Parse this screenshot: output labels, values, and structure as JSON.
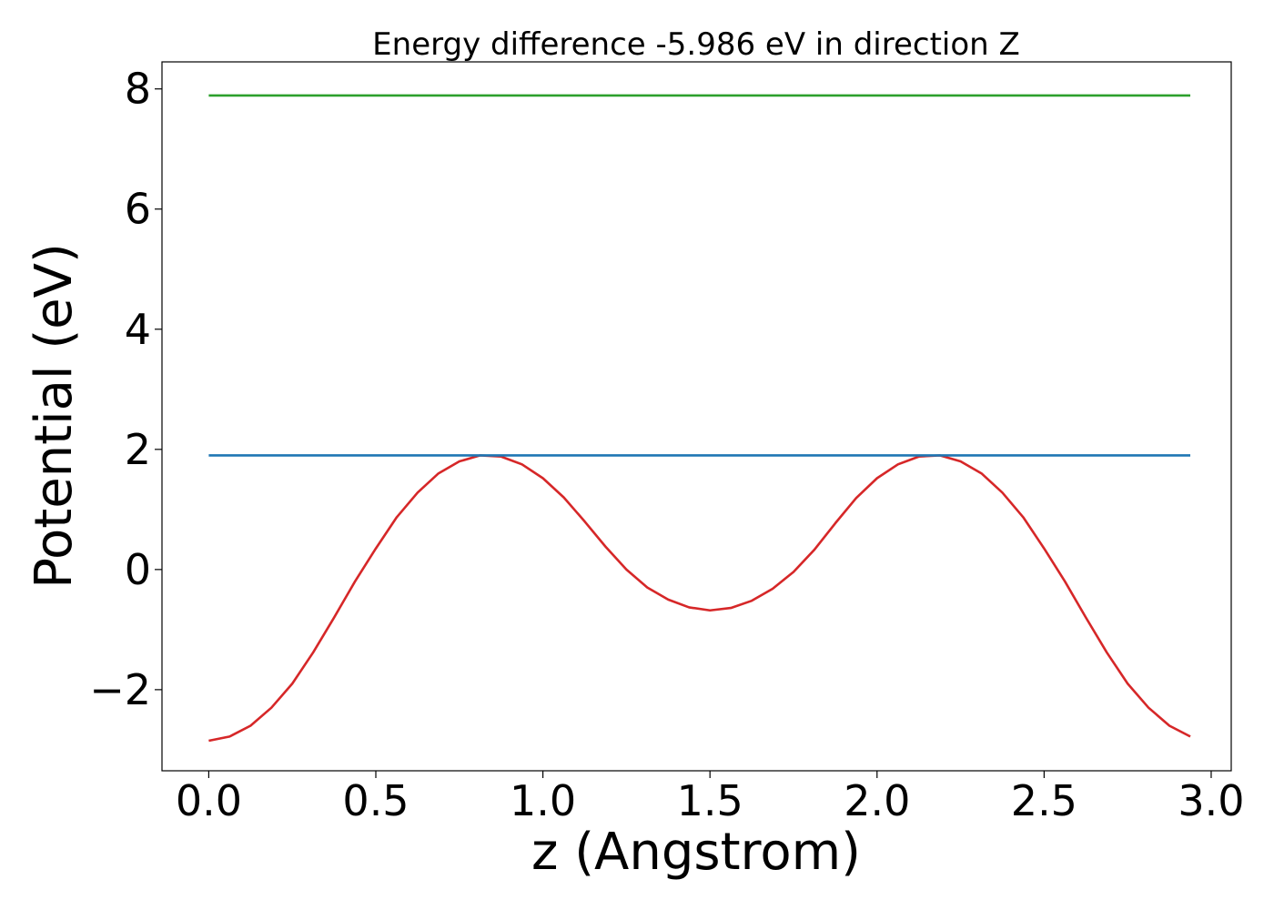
{
  "chart_data": {
    "type": "line",
    "title": "Energy difference -5.986 eV in direction Z",
    "xlabel": "z (Angstrom)",
    "ylabel": "Potential (eV)",
    "xlim": [
      -0.14,
      3.06
    ],
    "ylim": [
      -3.35,
      8.45
    ],
    "xticks": [
      0.0,
      0.5,
      1.0,
      1.5,
      2.0,
      2.5,
      3.0
    ],
    "xtick_labels": [
      "0.0",
      "0.5",
      "1.0",
      "1.5",
      "2.0",
      "2.5",
      "3.0"
    ],
    "yticks": [
      -2,
      0,
      2,
      4,
      6,
      8
    ],
    "ytick_labels": [
      "−2",
      "0",
      "2",
      "4",
      "6",
      "8"
    ],
    "grid": false,
    "series": [
      {
        "color": "#d62728",
        "x": [
          0.0,
          0.0625,
          0.125,
          0.1875,
          0.25,
          0.3125,
          0.375,
          0.4375,
          0.5,
          0.5625,
          0.625,
          0.6875,
          0.75,
          0.8125,
          0.875,
          0.9375,
          1.0,
          1.0625,
          1.125,
          1.1875,
          1.25,
          1.3125,
          1.375,
          1.4375,
          1.5,
          1.5625,
          1.625,
          1.6875,
          1.75,
          1.8125,
          1.875,
          1.9375,
          2.0,
          2.0625,
          2.125,
          2.1875,
          2.25,
          2.3125,
          2.375,
          2.4375,
          2.5,
          2.5625,
          2.625,
          2.6875,
          2.75,
          2.8125,
          2.875,
          2.9375
        ],
        "y": [
          -2.85,
          -2.78,
          -2.6,
          -2.3,
          -1.9,
          -1.38,
          -0.8,
          -0.2,
          0.35,
          0.87,
          1.28,
          1.6,
          1.8,
          1.9,
          1.88,
          1.75,
          1.52,
          1.2,
          0.8,
          0.38,
          0.0,
          -0.3,
          -0.5,
          -0.63,
          -0.68,
          -0.64,
          -0.52,
          -0.32,
          -0.04,
          0.33,
          0.77,
          1.19,
          1.52,
          1.75,
          1.88,
          1.9,
          1.8,
          1.6,
          1.28,
          0.87,
          0.35,
          -0.2,
          -0.8,
          -1.38,
          -1.9,
          -2.3,
          -2.6,
          -2.78
        ]
      },
      {
        "color": "#1f77b4",
        "x": [
          0.0,
          2.9375
        ],
        "y": [
          1.9,
          1.9
        ]
      },
      {
        "color": "#2ca02c",
        "x": [
          0.0,
          2.9375
        ],
        "y": [
          7.89,
          7.89
        ]
      }
    ]
  }
}
